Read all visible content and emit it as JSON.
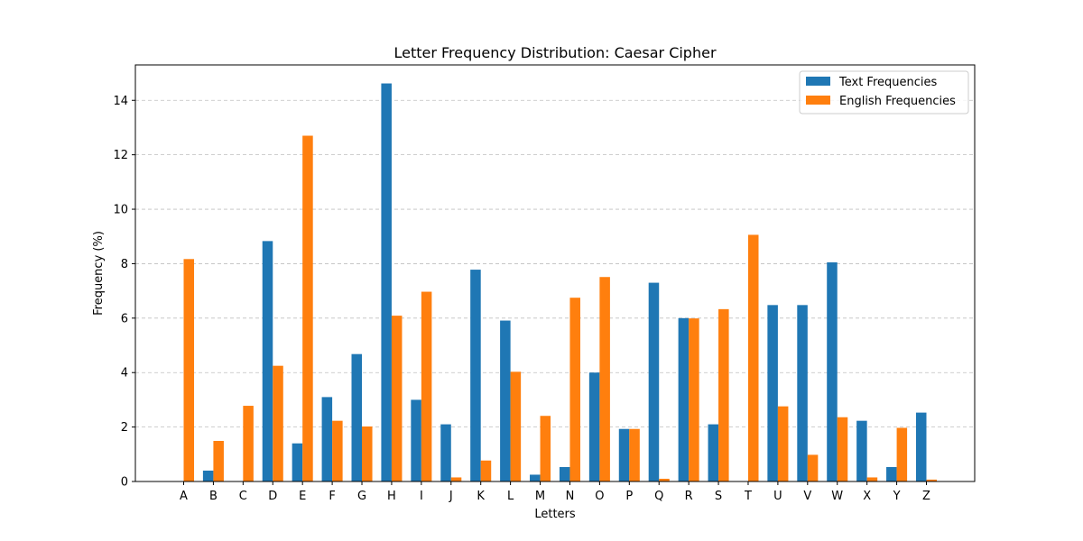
{
  "chart_data": {
    "type": "bar",
    "title": "Letter Frequency Distribution: Caesar Cipher",
    "xlabel": "Letters",
    "ylabel": "Frequency (%)",
    "ylim": [
      0,
      15.3
    ],
    "yticks": [
      0,
      2,
      4,
      6,
      8,
      10,
      12,
      14
    ],
    "grid": "y-dashed",
    "legend_position": "top-right",
    "categories": [
      "A",
      "B",
      "C",
      "D",
      "E",
      "F",
      "G",
      "H",
      "I",
      "J",
      "K",
      "L",
      "M",
      "N",
      "O",
      "P",
      "Q",
      "R",
      "S",
      "T",
      "U",
      "V",
      "W",
      "X",
      "Y",
      "Z"
    ],
    "series": [
      {
        "name": "Text Frequencies",
        "color": "#1f77b4",
        "values": [
          0,
          0.4,
          0,
          8.83,
          1.4,
          3.1,
          4.68,
          14.62,
          3.0,
          2.1,
          7.78,
          5.91,
          0.25,
          0.53,
          4.0,
          1.93,
          7.3,
          6.0,
          2.1,
          0,
          6.48,
          6.48,
          8.05,
          2.23,
          0.53,
          2.53
        ]
      },
      {
        "name": "English Frequencies",
        "color": "#ff7f0e",
        "values": [
          8.17,
          1.49,
          2.78,
          4.25,
          12.7,
          2.23,
          2.02,
          6.09,
          6.97,
          0.15,
          0.77,
          4.03,
          2.41,
          6.75,
          7.51,
          1.93,
          0.1,
          5.99,
          6.33,
          9.06,
          2.76,
          0.98,
          2.36,
          0.15,
          1.97,
          0.07
        ]
      }
    ]
  }
}
